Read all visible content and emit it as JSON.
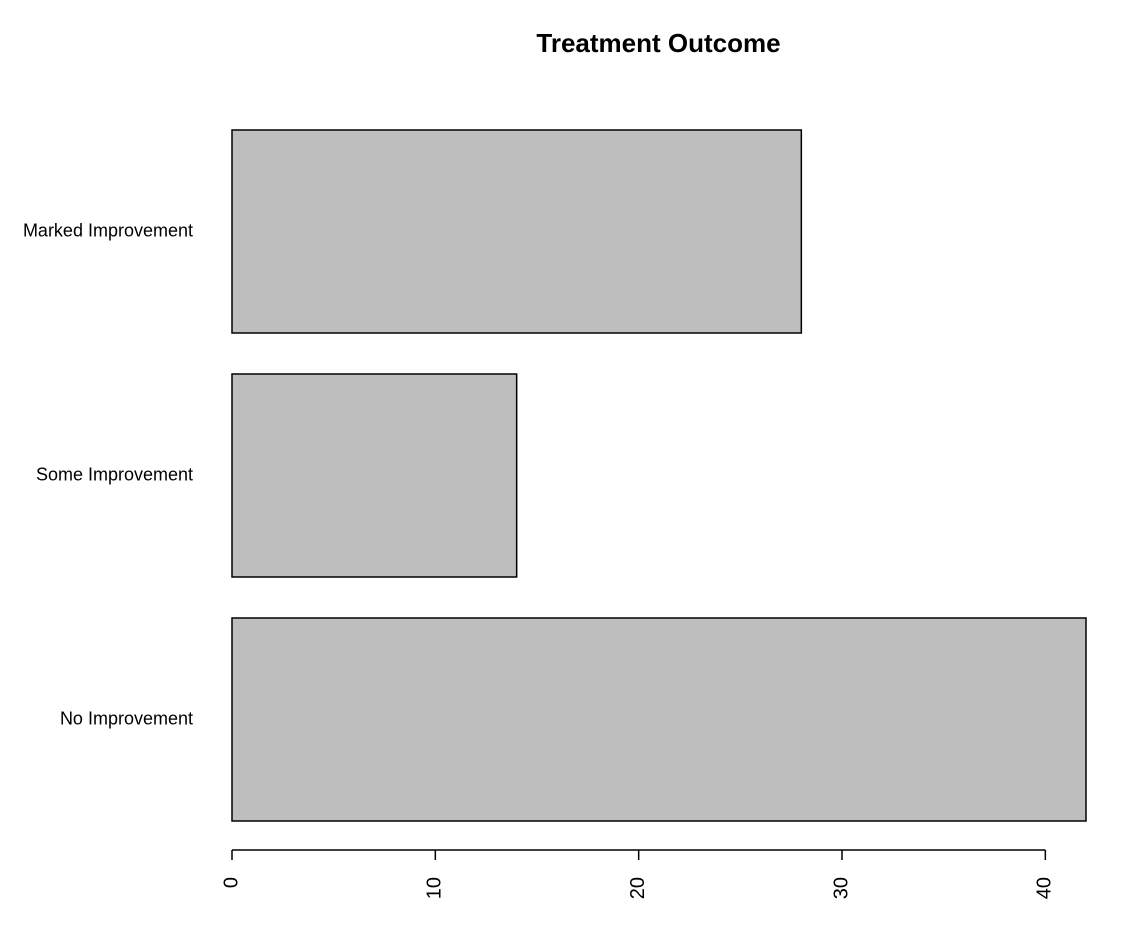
{
  "chart_data": {
    "type": "bar",
    "orientation": "horizontal",
    "title": "Treatment Outcome",
    "xlabel": "",
    "ylabel": "",
    "categories": [
      "No Improvement",
      "Some Improvement",
      "Marked Improvement"
    ],
    "values": [
      42,
      14,
      28
    ],
    "xlim": [
      0,
      42
    ],
    "x_ticks": [
      0,
      10,
      20,
      30,
      40
    ],
    "x_tick_labels": [
      "0",
      "10",
      "20",
      "30",
      "40"
    ],
    "grid": false,
    "legend": "none",
    "colors": {
      "bar_fill": "#bebebe",
      "bar_stroke": "#000000",
      "text": "#000000",
      "background": "#ffffff"
    }
  }
}
